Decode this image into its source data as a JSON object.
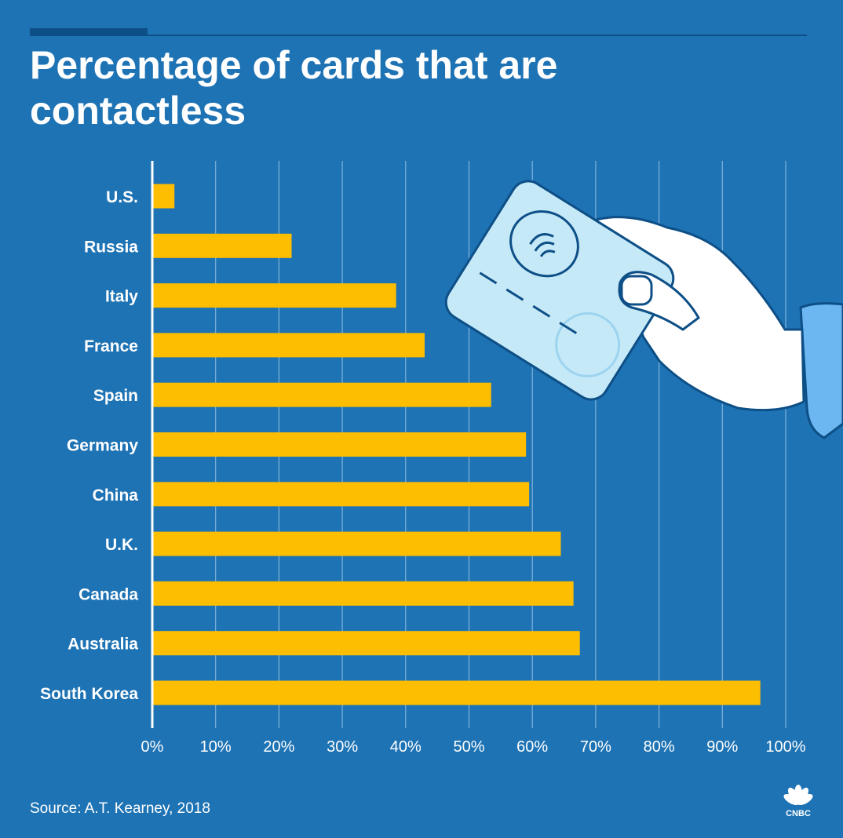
{
  "header": {
    "title": "Percentage of cards that are contactless"
  },
  "footer": {
    "source": "Source: A.T. Kearney, 2018",
    "logo_text": "CNBC"
  },
  "colors": {
    "background": "#1e73b4",
    "bar": "#fdbd00",
    "gridline": "#7fb2da",
    "text": "#ffffff"
  },
  "illustration": {
    "icon": "hand-holding-contactless-card-icon"
  },
  "chart_data": {
    "type": "bar",
    "orientation": "horizontal",
    "categories": [
      "U.S.",
      "Russia",
      "Italy",
      "France",
      "Spain",
      "Germany",
      "China",
      "U.K.",
      "Canada",
      "Australia",
      "South Korea"
    ],
    "values": [
      3.5,
      22,
      38.5,
      43,
      53.5,
      59,
      59.5,
      64.5,
      66.5,
      67.5,
      96
    ],
    "xlim": [
      0,
      100
    ],
    "xticks": [
      0,
      10,
      20,
      30,
      40,
      50,
      60,
      70,
      80,
      90,
      100
    ],
    "xtick_labels": [
      "0%",
      "10%",
      "20%",
      "30%",
      "40%",
      "50%",
      "60%",
      "70%",
      "80%",
      "90%",
      "100%"
    ],
    "grid": "vertical",
    "legend": "none",
    "title": "Percentage of cards that are contactless",
    "xlabel": "",
    "ylabel": ""
  }
}
